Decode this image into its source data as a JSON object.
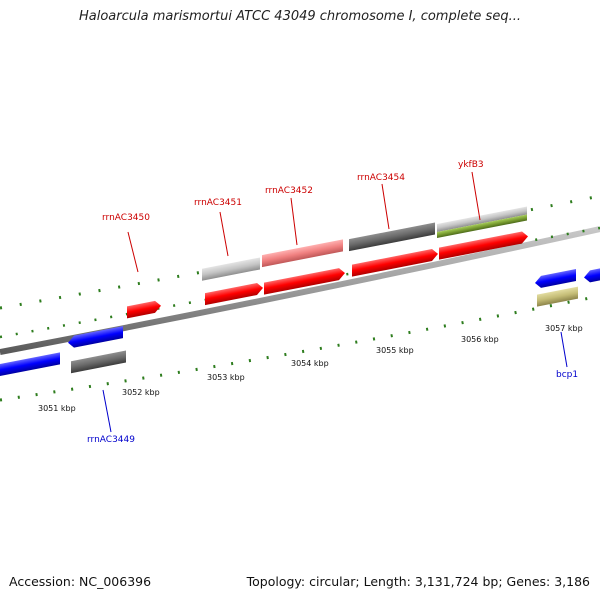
{
  "title": "Haloarcula marismortui ATCC 43049 chromosome I, complete seq...",
  "footer": {
    "accession": "Accession: NC_006396",
    "summary": "Topology: circular; Length: 3,131,724 bp; Genes: 3,186"
  },
  "colors": {
    "forward_gene": "#ff0000",
    "reverse_gene": "#0000ff",
    "backbone": "#8c8c8c",
    "ruler_ticks": "#2e7d1e",
    "forward_label": "#cc0000",
    "reverse_label": "#0000cc"
  },
  "gene_labels": {
    "rrnAC3449": "rrnAC3449",
    "rrnAC3450": "rrnAC3450",
    "rrnAC3451": "rrnAC3451",
    "rrnAC3452": "rrnAC3452",
    "rrnAC3454": "rrnAC3454",
    "ykfB3": "ykfB3",
    "bcp1": "bcp1"
  },
  "position_labels": [
    "3051 kbp",
    "3052 kbp",
    "3053 kbp",
    "3054 kbp",
    "3055 kbp",
    "3056 kbp",
    "3057 kbp"
  ]
}
